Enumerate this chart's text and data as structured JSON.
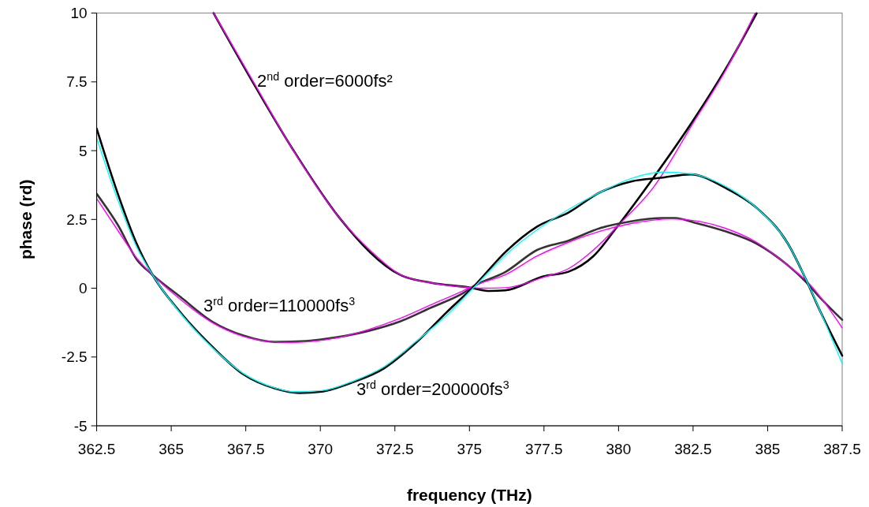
{
  "chart_data": {
    "type": "line",
    "xlabel": "frequency (THz)",
    "ylabel": "phase (rd)",
    "xlim": [
      362.5,
      387.5
    ],
    "ylim": [
      -5,
      10
    ],
    "xticks": [
      362.5,
      365,
      367.5,
      370,
      372.5,
      375,
      377.5,
      380,
      382.5,
      385,
      387.5
    ],
    "yticks": [
      -5,
      -2.5,
      0,
      2.5,
      5,
      7.5,
      10
    ],
    "grid": false,
    "marker": "none",
    "annotations": [
      "2$^{nd}$ order=6000fs²",
      "3$^{rd}$ order=110000fs$^{3}$",
      "3$^{rd}$ order=200000fs$^{3}$"
    ],
    "series": [
      {
        "color": "#000000",
        "x": [
          366.42,
          367.73,
          369.1,
          370.67,
          372.67,
          373.7,
          374.98,
          375.69,
          376.2,
          377.48,
          378.32,
          379.16,
          380.0,
          381.16,
          382.53,
          383.58,
          384.63
        ],
        "values": [
          10,
          7.5,
          5.01,
          2.52,
          0.49,
          0.2,
          0.03,
          -0.1,
          -0.08,
          0.43,
          0.6,
          1.17,
          2.3,
          4.0,
          6.14,
          7.95,
          9.99
        ]
      },
      {
        "color": "#ff00ff",
        "x": [
          366.42,
          367.73,
          369.1,
          370.67,
          371.7,
          372.67,
          373.7,
          374.98,
          375.5,
          376.2,
          377.48,
          378.32,
          379.16,
          380.0,
          381.16,
          382.53,
          383.58,
          384.58
        ],
        "values": [
          10,
          7.55,
          5.0,
          2.52,
          1.35,
          0.5,
          0.2,
          0.03,
          0,
          0.02,
          0.4,
          0.71,
          1.39,
          2.3,
          3.65,
          6.05,
          7.9,
          10
        ]
      },
      {
        "color": "#333333",
        "x": [
          362.5,
          363.21,
          363.84,
          364.37,
          365.3,
          366.37,
          367.42,
          368.47,
          369.52,
          370.57,
          371.62,
          372.67,
          373.72,
          374.77,
          375.17,
          376.22,
          377.27,
          378.32,
          379.37,
          380.42,
          381.47,
          381.9,
          382.53,
          383.58,
          384.63,
          385.68,
          386.31,
          386.73,
          387.5
        ],
        "values": [
          3.43,
          2.3,
          1.05,
          0.49,
          -0.31,
          -1.21,
          -1.72,
          -1.95,
          -1.92,
          -1.78,
          -1.55,
          -1.21,
          -0.7,
          -0.19,
          0.09,
          0.6,
          1.39,
          1.73,
          2.18,
          2.43,
          2.55,
          2.55,
          2.39,
          2.07,
          1.62,
          0.83,
          0.2,
          -0.31,
          -1.15
        ]
      },
      {
        "color": "#ff00ff",
        "x": [
          362.5,
          363.21,
          363.84,
          364.37,
          365.3,
          366.37,
          367.42,
          368.47,
          369.0,
          369.52,
          370.57,
          371.62,
          372.67,
          373.72,
          374.77,
          375.17,
          376.22,
          377.27,
          378.32,
          379.37,
          380.42,
          381.8,
          383.58,
          384.63,
          385.68,
          386.31,
          387.5
        ],
        "values": [
          3.26,
          2.1,
          1.1,
          0.49,
          -0.4,
          -1.25,
          -1.75,
          -1.95,
          -1.97,
          -1.95,
          -1.8,
          -1.5,
          -1.1,
          -0.6,
          -0.1,
          0.1,
          0.5,
          1.17,
          1.67,
          2.07,
          2.35,
          2.52,
          2.18,
          1.67,
          0.83,
          0.26,
          -1.44
        ]
      },
      {
        "color": "#000000",
        "x": [
          362.5,
          363.21,
          363.84,
          364.37,
          365.3,
          366.37,
          367.42,
          368.47,
          369.3,
          370.04,
          371.09,
          372.14,
          373.19,
          374.24,
          375.17,
          376.22,
          377.27,
          378.32,
          379.37,
          380.42,
          381.47,
          382.42,
          383.58,
          384.63,
          385.68,
          386.31,
          386.73,
          387.5
        ],
        "values": [
          5.8,
          3.43,
          1.62,
          0.49,
          -0.87,
          -2.12,
          -3.13,
          -3.64,
          -3.81,
          -3.76,
          -3.42,
          -2.91,
          -2.0,
          -0.87,
          0.09,
          1.33,
          2.24,
          2.75,
          3.48,
          3.88,
          4.02,
          4.14,
          3.65,
          2.92,
          1.62,
          0.26,
          -0.76,
          -2.45
        ]
      },
      {
        "color": "#00ffff",
        "x": [
          362.5,
          363.21,
          363.84,
          364.37,
          365.3,
          366.37,
          367.42,
          368.47,
          369.1,
          370.04,
          371.09,
          372.14,
          373.19,
          374.24,
          375.17,
          376.22,
          377.27,
          378.32,
          379.37,
          380.42,
          381.47,
          382.42,
          383.58,
          384.63,
          385.68,
          386.31,
          387.5
        ],
        "values": [
          5.46,
          3.2,
          1.5,
          0.49,
          -0.9,
          -2.15,
          -3.1,
          -3.62,
          -3.76,
          -3.72,
          -3.38,
          -2.85,
          -1.95,
          -0.98,
          0.05,
          1.22,
          2.13,
          2.86,
          3.48,
          3.99,
          4.22,
          4.16,
          3.71,
          2.92,
          1.62,
          0.26,
          -2.74
        ]
      }
    ]
  }
}
